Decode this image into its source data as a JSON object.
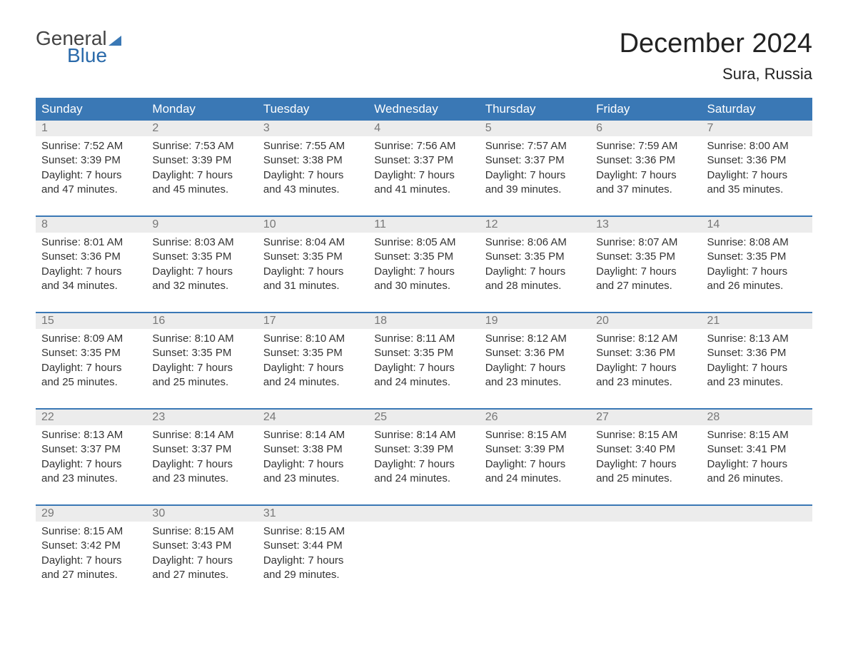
{
  "logo": {
    "line1": "General",
    "line2": "Blue"
  },
  "title": "December 2024",
  "location": "Sura, Russia",
  "day_headers": [
    "Sunday",
    "Monday",
    "Tuesday",
    "Wednesday",
    "Thursday",
    "Friday",
    "Saturday"
  ],
  "colors": {
    "header_bg": "#3a78b5",
    "header_fg": "#ffffff",
    "daynum_bg": "#ececec",
    "daynum_fg": "#777777",
    "text": "#333333"
  },
  "weeks": [
    [
      {
        "num": "1",
        "sunrise": "Sunrise: 7:52 AM",
        "sunset": "Sunset: 3:39 PM",
        "day1": "Daylight: 7 hours",
        "day2": "and 47 minutes."
      },
      {
        "num": "2",
        "sunrise": "Sunrise: 7:53 AM",
        "sunset": "Sunset: 3:39 PM",
        "day1": "Daylight: 7 hours",
        "day2": "and 45 minutes."
      },
      {
        "num": "3",
        "sunrise": "Sunrise: 7:55 AM",
        "sunset": "Sunset: 3:38 PM",
        "day1": "Daylight: 7 hours",
        "day2": "and 43 minutes."
      },
      {
        "num": "4",
        "sunrise": "Sunrise: 7:56 AM",
        "sunset": "Sunset: 3:37 PM",
        "day1": "Daylight: 7 hours",
        "day2": "and 41 minutes."
      },
      {
        "num": "5",
        "sunrise": "Sunrise: 7:57 AM",
        "sunset": "Sunset: 3:37 PM",
        "day1": "Daylight: 7 hours",
        "day2": "and 39 minutes."
      },
      {
        "num": "6",
        "sunrise": "Sunrise: 7:59 AM",
        "sunset": "Sunset: 3:36 PM",
        "day1": "Daylight: 7 hours",
        "day2": "and 37 minutes."
      },
      {
        "num": "7",
        "sunrise": "Sunrise: 8:00 AM",
        "sunset": "Sunset: 3:36 PM",
        "day1": "Daylight: 7 hours",
        "day2": "and 35 minutes."
      }
    ],
    [
      {
        "num": "8",
        "sunrise": "Sunrise: 8:01 AM",
        "sunset": "Sunset: 3:36 PM",
        "day1": "Daylight: 7 hours",
        "day2": "and 34 minutes."
      },
      {
        "num": "9",
        "sunrise": "Sunrise: 8:03 AM",
        "sunset": "Sunset: 3:35 PM",
        "day1": "Daylight: 7 hours",
        "day2": "and 32 minutes."
      },
      {
        "num": "10",
        "sunrise": "Sunrise: 8:04 AM",
        "sunset": "Sunset: 3:35 PM",
        "day1": "Daylight: 7 hours",
        "day2": "and 31 minutes."
      },
      {
        "num": "11",
        "sunrise": "Sunrise: 8:05 AM",
        "sunset": "Sunset: 3:35 PM",
        "day1": "Daylight: 7 hours",
        "day2": "and 30 minutes."
      },
      {
        "num": "12",
        "sunrise": "Sunrise: 8:06 AM",
        "sunset": "Sunset: 3:35 PM",
        "day1": "Daylight: 7 hours",
        "day2": "and 28 minutes."
      },
      {
        "num": "13",
        "sunrise": "Sunrise: 8:07 AM",
        "sunset": "Sunset: 3:35 PM",
        "day1": "Daylight: 7 hours",
        "day2": "and 27 minutes."
      },
      {
        "num": "14",
        "sunrise": "Sunrise: 8:08 AM",
        "sunset": "Sunset: 3:35 PM",
        "day1": "Daylight: 7 hours",
        "day2": "and 26 minutes."
      }
    ],
    [
      {
        "num": "15",
        "sunrise": "Sunrise: 8:09 AM",
        "sunset": "Sunset: 3:35 PM",
        "day1": "Daylight: 7 hours",
        "day2": "and 25 minutes."
      },
      {
        "num": "16",
        "sunrise": "Sunrise: 8:10 AM",
        "sunset": "Sunset: 3:35 PM",
        "day1": "Daylight: 7 hours",
        "day2": "and 25 minutes."
      },
      {
        "num": "17",
        "sunrise": "Sunrise: 8:10 AM",
        "sunset": "Sunset: 3:35 PM",
        "day1": "Daylight: 7 hours",
        "day2": "and 24 minutes."
      },
      {
        "num": "18",
        "sunrise": "Sunrise: 8:11 AM",
        "sunset": "Sunset: 3:35 PM",
        "day1": "Daylight: 7 hours",
        "day2": "and 24 minutes."
      },
      {
        "num": "19",
        "sunrise": "Sunrise: 8:12 AM",
        "sunset": "Sunset: 3:36 PM",
        "day1": "Daylight: 7 hours",
        "day2": "and 23 minutes."
      },
      {
        "num": "20",
        "sunrise": "Sunrise: 8:12 AM",
        "sunset": "Sunset: 3:36 PM",
        "day1": "Daylight: 7 hours",
        "day2": "and 23 minutes."
      },
      {
        "num": "21",
        "sunrise": "Sunrise: 8:13 AM",
        "sunset": "Sunset: 3:36 PM",
        "day1": "Daylight: 7 hours",
        "day2": "and 23 minutes."
      }
    ],
    [
      {
        "num": "22",
        "sunrise": "Sunrise: 8:13 AM",
        "sunset": "Sunset: 3:37 PM",
        "day1": "Daylight: 7 hours",
        "day2": "and 23 minutes."
      },
      {
        "num": "23",
        "sunrise": "Sunrise: 8:14 AM",
        "sunset": "Sunset: 3:37 PM",
        "day1": "Daylight: 7 hours",
        "day2": "and 23 minutes."
      },
      {
        "num": "24",
        "sunrise": "Sunrise: 8:14 AM",
        "sunset": "Sunset: 3:38 PM",
        "day1": "Daylight: 7 hours",
        "day2": "and 23 minutes."
      },
      {
        "num": "25",
        "sunrise": "Sunrise: 8:14 AM",
        "sunset": "Sunset: 3:39 PM",
        "day1": "Daylight: 7 hours",
        "day2": "and 24 minutes."
      },
      {
        "num": "26",
        "sunrise": "Sunrise: 8:15 AM",
        "sunset": "Sunset: 3:39 PM",
        "day1": "Daylight: 7 hours",
        "day2": "and 24 minutes."
      },
      {
        "num": "27",
        "sunrise": "Sunrise: 8:15 AM",
        "sunset": "Sunset: 3:40 PM",
        "day1": "Daylight: 7 hours",
        "day2": "and 25 minutes."
      },
      {
        "num": "28",
        "sunrise": "Sunrise: 8:15 AM",
        "sunset": "Sunset: 3:41 PM",
        "day1": "Daylight: 7 hours",
        "day2": "and 26 minutes."
      }
    ],
    [
      {
        "num": "29",
        "sunrise": "Sunrise: 8:15 AM",
        "sunset": "Sunset: 3:42 PM",
        "day1": "Daylight: 7 hours",
        "day2": "and 27 minutes."
      },
      {
        "num": "30",
        "sunrise": "Sunrise: 8:15 AM",
        "sunset": "Sunset: 3:43 PM",
        "day1": "Daylight: 7 hours",
        "day2": "and 27 minutes."
      },
      {
        "num": "31",
        "sunrise": "Sunrise: 8:15 AM",
        "sunset": "Sunset: 3:44 PM",
        "day1": "Daylight: 7 hours",
        "day2": "and 29 minutes."
      },
      null,
      null,
      null,
      null
    ]
  ]
}
